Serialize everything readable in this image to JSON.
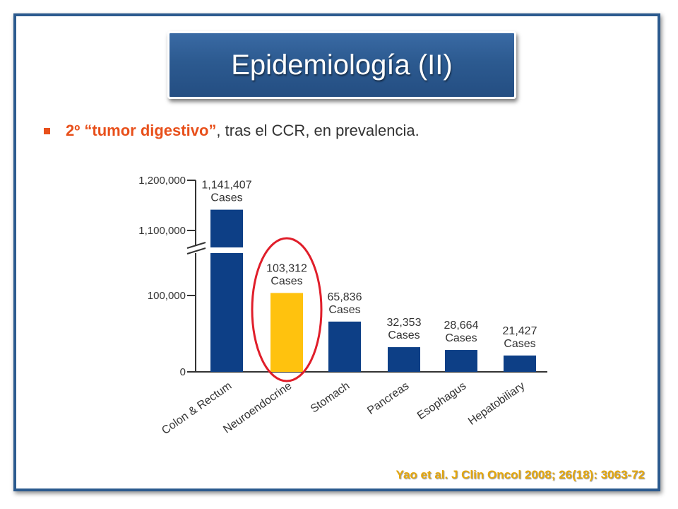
{
  "slide": {
    "title": "Epidemiología (II)",
    "bullet": {
      "highlight": "2º “tumor digestivo”",
      "rest": ", tras el CCR, en prevalencia."
    },
    "citation": "Yao et al. J Clin Oncol 2008; 26(18): 3063-72"
  },
  "colors": {
    "frame": "#2b5a8e",
    "title_bg": "#2c5a90",
    "accent": "#e8501b",
    "bar_default": "#0d3f86",
    "bar_highlight": "#ffc20e",
    "circle": "#e01e2a",
    "citation": "#e5a70d"
  },
  "chart_data": {
    "type": "bar",
    "categories": [
      "Colon & Rectum",
      "Neuroendocrine",
      "Stomach",
      "Pancreas",
      "Esophagus",
      "Hepatobiliary"
    ],
    "values": [
      1141407,
      103312,
      65836,
      32353,
      28664,
      21427
    ],
    "data_labels": [
      [
        "1,141,407",
        "Cases"
      ],
      [
        "103,312",
        "Cases"
      ],
      [
        "65,836",
        "Cases"
      ],
      [
        "32,353",
        "Cases"
      ],
      [
        "28,664",
        "Cases"
      ],
      [
        "21,427",
        "Cases"
      ]
    ],
    "y_ticks": [
      {
        "value": 0,
        "label": "0"
      },
      {
        "value": 100000,
        "label": "100,000"
      },
      {
        "value": 1100000,
        "label": "1,100,000"
      },
      {
        "value": 1200000,
        "label": "1,200,000"
      }
    ],
    "axis_break": {
      "lower_max": 150000,
      "upper_min": 1050000
    },
    "highlighted_category": "Neuroendocrine",
    "title": "",
    "xlabel": "",
    "ylabel": "",
    "grid": false,
    "legend": "none"
  }
}
